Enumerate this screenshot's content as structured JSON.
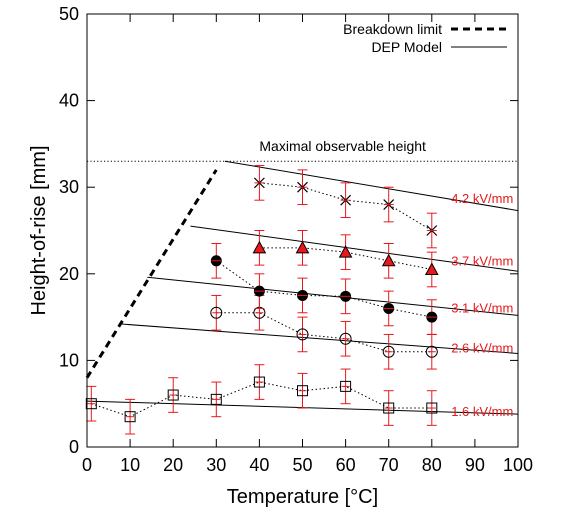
{
  "chart_data": {
    "type": "scatter",
    "title": "",
    "xlabel": "Temperature [°C]",
    "ylabel": "Height-of-rise [mm]",
    "xlim": [
      0,
      100
    ],
    "ylim": [
      0,
      50
    ],
    "xticks": [
      0,
      10,
      20,
      30,
      40,
      50,
      60,
      70,
      80,
      90,
      100
    ],
    "yticks": [
      0,
      10,
      20,
      30,
      40,
      50
    ],
    "grid": false,
    "legend": {
      "placement": "top-right",
      "entries": [
        {
          "label": "Breakdown limit",
          "style": "thick-dashed"
        },
        {
          "label": "DEP Model",
          "style": "solid"
        }
      ]
    },
    "reference_line": {
      "label": "Maximal observable height",
      "y": 33,
      "style": "dotted"
    },
    "breakdown_limit": {
      "x": [
        0,
        30
      ],
      "y": [
        8,
        32
      ]
    },
    "errorbar_color": "#e8191c",
    "field_label_color": "#e8191c",
    "series": [
      {
        "field": "1.6 kV/mm",
        "marker": "open-square",
        "x": [
          1,
          10,
          20,
          30,
          40,
          50,
          60,
          70,
          80
        ],
        "y": [
          5,
          3.5,
          6,
          5.5,
          7.5,
          6.5,
          7,
          4.5,
          4.5
        ],
        "error": [
          2,
          2,
          2,
          2,
          2,
          2,
          2,
          2,
          2
        ],
        "model": {
          "x": [
            0,
            100
          ],
          "y": [
            5.3,
            3.8
          ]
        }
      },
      {
        "field": "2.6 kV/mm",
        "marker": "open-circle",
        "x": [
          30,
          40,
          50,
          60,
          70,
          80
        ],
        "y": [
          15.5,
          15.5,
          13,
          12.5,
          11,
          11
        ],
        "error": [
          2,
          2,
          2,
          2,
          2,
          2
        ],
        "model": {
          "x": [
            8,
            100
          ],
          "y": [
            14.2,
            10.8
          ]
        }
      },
      {
        "field": "3.1 kV/mm",
        "marker": "filled-circle",
        "x": [
          30,
          40,
          50,
          60,
          70,
          80
        ],
        "y": [
          21.5,
          18,
          17.5,
          17.4,
          16,
          15
        ],
        "error": [
          2,
          2,
          2,
          2,
          2,
          2
        ],
        "model": {
          "x": [
            14,
            100
          ],
          "y": [
            19.6,
            15.2
          ]
        }
      },
      {
        "field": "3.7 kV/mm",
        "marker": "triangle",
        "x": [
          40,
          50,
          60,
          70,
          80
        ],
        "y": [
          23,
          23,
          22.5,
          21.5,
          20.5
        ],
        "error": [
          2,
          2,
          2,
          2,
          2
        ],
        "model": {
          "x": [
            24,
            100
          ],
          "y": [
            25.5,
            20.3
          ]
        }
      },
      {
        "field": "4.2 kV/mm",
        "marker": "star",
        "x": [
          40,
          50,
          60,
          70,
          80
        ],
        "y": [
          30.5,
          30,
          28.5,
          28,
          25
        ],
        "error": [
          2,
          2,
          2,
          2,
          2
        ],
        "model": {
          "x": [
            32,
            100
          ],
          "y": [
            33,
            27.3
          ]
        }
      }
    ]
  }
}
